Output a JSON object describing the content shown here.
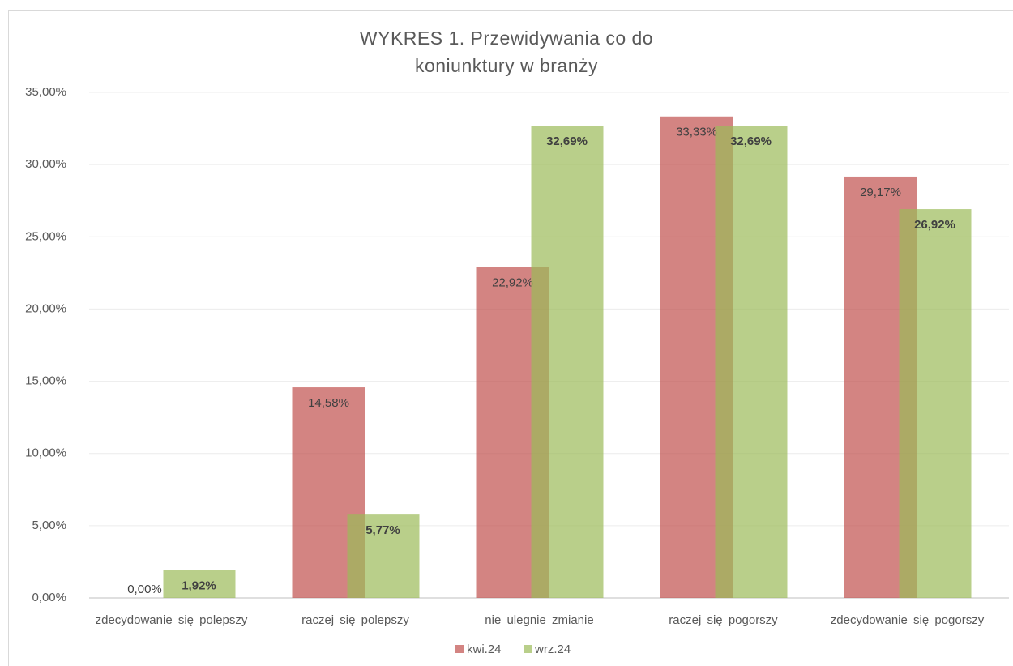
{
  "chart_data": {
    "type": "bar",
    "title": "WYKRES 1. Przewidywania co do koniunktury w branży",
    "categories": [
      "zdecydowanie się polepszy",
      "raczej się polepszy",
      "nie ulegnie zmianie",
      "raczej się pogorszy",
      "zdecydowanie się pogorszy"
    ],
    "series": [
      {
        "name": "kwi.24",
        "color": "#c0504d",
        "values": [
          0,
          14.58,
          22.92,
          33.33,
          29.17
        ],
        "value_labels": [
          "0,00%",
          "14,58%",
          "22,92%",
          "33,33%",
          "29,17%"
        ]
      },
      {
        "name": "wrz.24",
        "color": "#9bbb59",
        "values": [
          1.92,
          5.77,
          32.69,
          32.69,
          26.92
        ],
        "value_labels": [
          "1,92%",
          "5,77%",
          "32,69%",
          "32,69%",
          "26,92%"
        ]
      }
    ],
    "ylim": [
      0,
      35
    ],
    "yticks": [
      {
        "value": 0,
        "label": "0,00%"
      },
      {
        "value": 5,
        "label": "5,00%"
      },
      {
        "value": 10,
        "label": "10,00%"
      },
      {
        "value": 15,
        "label": "15,00%"
      },
      {
        "value": 20,
        "label": "20,00%"
      },
      {
        "value": 25,
        "label": "25,00%"
      },
      {
        "value": 30,
        "label": "30,00%"
      },
      {
        "value": 35,
        "label": "35,00%"
      }
    ],
    "grid": true,
    "legend": "bottom"
  }
}
